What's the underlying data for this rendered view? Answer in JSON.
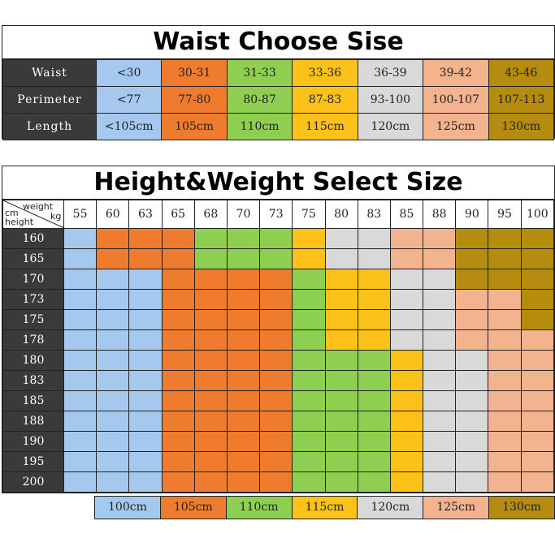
{
  "colors": {
    "c100": "#a4c8ee",
    "c105": "#ef7b2e",
    "c110": "#8ecf51",
    "c115": "#fcc21a",
    "c120": "#d9d9d9",
    "c125": "#f4b38f",
    "c130": "#b58c10",
    "header": "#3a3a3a"
  },
  "waist": {
    "title": "Waist Choose Sise",
    "row_labels": [
      "Waist",
      "Perimeter",
      "Length"
    ],
    "columns": [
      {
        "waist": "<30",
        "perimeter": "<77",
        "length": "<105cm",
        "color": "c100"
      },
      {
        "waist": "30-31",
        "perimeter": "77-80",
        "length": "105cm",
        "color": "c105"
      },
      {
        "waist": "31-33",
        "perimeter": "80-87",
        "length": "110cm",
        "color": "c110"
      },
      {
        "waist": "33-36",
        "perimeter": "87-83",
        "length": "115cm",
        "color": "c115"
      },
      {
        "waist": "36-39",
        "perimeter": "93-100",
        "length": "120cm",
        "color": "c120"
      },
      {
        "waist": "39-42",
        "perimeter": "100-107",
        "length": "125cm",
        "color": "c125"
      },
      {
        "waist": "43-46",
        "perimeter": "107-113",
        "length": "130cm",
        "color": "c130"
      }
    ]
  },
  "size": {
    "title": "Height&Weight Select Size",
    "corner": {
      "weight": "weight",
      "kg": "kg",
      "cm": "cm",
      "height": "height"
    },
    "weights": [
      "55",
      "60",
      "63",
      "65",
      "68",
      "70",
      "73",
      "75",
      "80",
      "83",
      "85",
      "88",
      "90",
      "95",
      "100"
    ],
    "rows": [
      {
        "height": "160",
        "cells": [
          "c100",
          "c105",
          "c105",
          "c105",
          "c110",
          "c110",
          "c110",
          "c115",
          "c120",
          "c120",
          "c125",
          "c125",
          "c130",
          "c130",
          "c130"
        ]
      },
      {
        "height": "165",
        "cells": [
          "c100",
          "c105",
          "c105",
          "c105",
          "c110",
          "c110",
          "c110",
          "c115",
          "c120",
          "c120",
          "c125",
          "c125",
          "c130",
          "c130",
          "c130"
        ]
      },
      {
        "height": "170",
        "cells": [
          "c100",
          "c100",
          "c100",
          "c105",
          "c105",
          "c105",
          "c105",
          "c110",
          "c115",
          "c115",
          "c120",
          "c120",
          "c130",
          "c130",
          "c130"
        ]
      },
      {
        "height": "173",
        "cells": [
          "c100",
          "c100",
          "c100",
          "c105",
          "c105",
          "c105",
          "c105",
          "c110",
          "c115",
          "c115",
          "c120",
          "c120",
          "c125",
          "c125",
          "c130"
        ]
      },
      {
        "height": "175",
        "cells": [
          "c100",
          "c100",
          "c100",
          "c105",
          "c105",
          "c105",
          "c105",
          "c110",
          "c115",
          "c115",
          "c120",
          "c120",
          "c125",
          "c125",
          "c130"
        ]
      },
      {
        "height": "178",
        "cells": [
          "c100",
          "c100",
          "c100",
          "c105",
          "c105",
          "c105",
          "c105",
          "c110",
          "c115",
          "c115",
          "c120",
          "c120",
          "c125",
          "c125",
          "c125"
        ]
      },
      {
        "height": "180",
        "cells": [
          "c100",
          "c100",
          "c100",
          "c105",
          "c105",
          "c105",
          "c105",
          "c110",
          "c110",
          "c110",
          "c115",
          "c120",
          "c120",
          "c125",
          "c125"
        ]
      },
      {
        "height": "183",
        "cells": [
          "c100",
          "c100",
          "c100",
          "c105",
          "c105",
          "c105",
          "c105",
          "c110",
          "c110",
          "c110",
          "c115",
          "c120",
          "c120",
          "c125",
          "c125"
        ]
      },
      {
        "height": "185",
        "cells": [
          "c100",
          "c100",
          "c100",
          "c105",
          "c105",
          "c105",
          "c105",
          "c110",
          "c110",
          "c110",
          "c115",
          "c120",
          "c120",
          "c125",
          "c125"
        ]
      },
      {
        "height": "188",
        "cells": [
          "c100",
          "c100",
          "c100",
          "c105",
          "c105",
          "c105",
          "c105",
          "c110",
          "c110",
          "c110",
          "c115",
          "c120",
          "c120",
          "c125",
          "c125"
        ]
      },
      {
        "height": "190",
        "cells": [
          "c100",
          "c100",
          "c100",
          "c105",
          "c105",
          "c105",
          "c105",
          "c110",
          "c110",
          "c110",
          "c115",
          "c120",
          "c120",
          "c125",
          "c125"
        ]
      },
      {
        "height": "195",
        "cells": [
          "c100",
          "c100",
          "c100",
          "c105",
          "c105",
          "c105",
          "c105",
          "c110",
          "c110",
          "c110",
          "c115",
          "c120",
          "c120",
          "c125",
          "c125"
        ]
      },
      {
        "height": "200",
        "cells": [
          "c100",
          "c100",
          "c100",
          "c105",
          "c105",
          "c105",
          "c105",
          "c110",
          "c110",
          "c110",
          "c115",
          "c120",
          "c120",
          "c125",
          "c125"
        ]
      }
    ]
  },
  "legend": [
    {
      "label": "100cm",
      "color": "c100"
    },
    {
      "label": "105cm",
      "color": "c105"
    },
    {
      "label": "110cm",
      "color": "c110"
    },
    {
      "label": "115cm",
      "color": "c115"
    },
    {
      "label": "120cm",
      "color": "c120"
    },
    {
      "label": "125cm",
      "color": "c125"
    },
    {
      "label": "130cm",
      "color": "c130"
    }
  ]
}
